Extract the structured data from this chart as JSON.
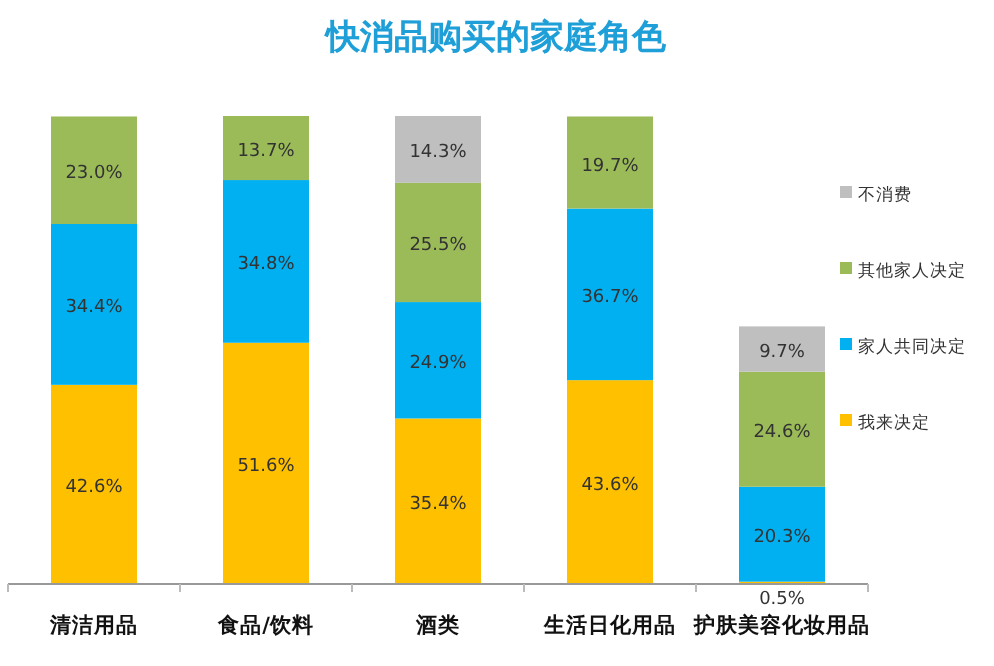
{
  "chart_data": {
    "type": "bar",
    "stacked": true,
    "title": "快消品购买的家庭角色",
    "categories": [
      "清洁用品",
      "食品/饮料",
      "酒类",
      "生活日化用品",
      "护肤美容化妆用品"
    ],
    "series": [
      {
        "name": "我来决定",
        "color": "#ffc000",
        "values": [
          42.6,
          51.6,
          35.4,
          43.6,
          0.5
        ],
        "value_labels": [
          "42.6%",
          "51.6%",
          "35.4%",
          "43.6%",
          "0.5%"
        ]
      },
      {
        "name": "家人共同决定",
        "color": "#00b0f0",
        "values": [
          34.4,
          34.8,
          24.9,
          36.7,
          20.3
        ],
        "value_labels": [
          "34.4%",
          "34.8%",
          "24.9%",
          "36.7%",
          "20.3%"
        ]
      },
      {
        "name": "其他家人决定",
        "color": "#9bbb59",
        "values": [
          23.0,
          13.7,
          25.5,
          19.7,
          24.6
        ],
        "value_labels": [
          "23.0%",
          "13.7%",
          "25.5%",
          "19.7%",
          "24.6%"
        ]
      },
      {
        "name": "不消费",
        "color": "#bfbfbf",
        "values": [
          null,
          null,
          14.3,
          null,
          9.7
        ],
        "value_labels": [
          null,
          null,
          "14.3%",
          null,
          "9.7%"
        ]
      }
    ],
    "tick_labels": "x",
    "legend": "right"
  }
}
